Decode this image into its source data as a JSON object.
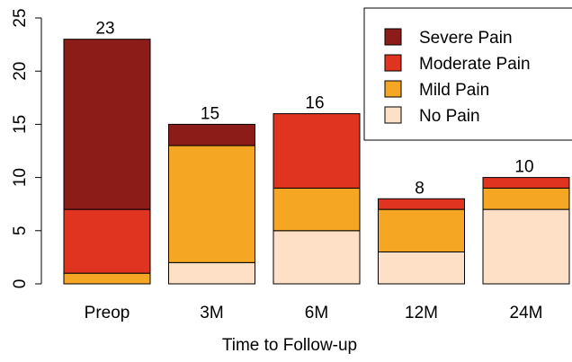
{
  "chart_data": {
    "type": "bar",
    "stacked": true,
    "title": "",
    "xlabel": "Time to Follow-up",
    "ylabel": "",
    "categories": [
      "Preop",
      "3M",
      "6M",
      "12M",
      "24M"
    ],
    "series": [
      {
        "name": "No Pain",
        "values": [
          0,
          2,
          5,
          3,
          7
        ],
        "color": "#fde0c5"
      },
      {
        "name": "Mild Pain",
        "values": [
          1,
          11,
          4,
          4,
          2
        ],
        "color": "#f5a623"
      },
      {
        "name": "Moderate Pain",
        "values": [
          6,
          0,
          7,
          1,
          1
        ],
        "color": "#e03420"
      },
      {
        "name": "Severe Pain",
        "values": [
          16,
          2,
          0,
          0,
          0
        ],
        "color": "#8b1c17"
      }
    ],
    "totals": [
      "23",
      "15",
      "16",
      "8",
      "10"
    ],
    "ylim": [
      0,
      25
    ],
    "yticks": [
      "0",
      "5",
      "10",
      "15",
      "20",
      "25"
    ],
    "legend": {
      "position": "top-right",
      "order": [
        "Severe Pain",
        "Moderate Pain",
        "Mild Pain",
        "No Pain"
      ]
    },
    "grid": false
  }
}
